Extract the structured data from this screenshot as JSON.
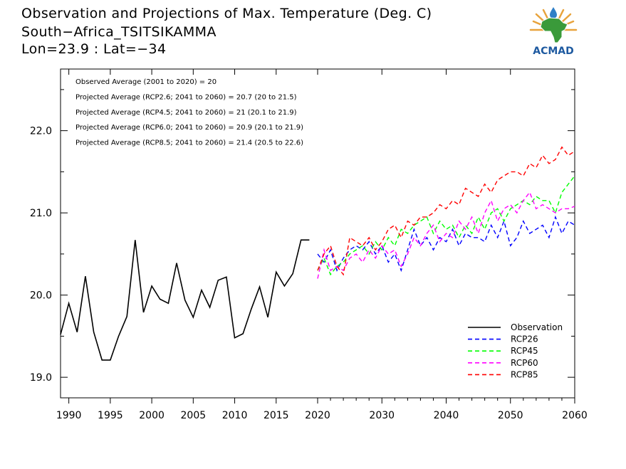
{
  "header": {
    "title_line1": "Observation and Projections of Max. Temperature (Deg. C)",
    "title_line2": "South−Africa_TSITSIKAMMA",
    "title_line3": "Lon=23.9 : Lat=−34"
  },
  "logo": {
    "text": "ACMAD"
  },
  "chart_data": {
    "type": "line",
    "title": "Observation and Projections of Max. Temperature (Deg. C)",
    "xlim": [
      1989,
      2060
    ],
    "ylim": [
      18.75,
      22.75
    ],
    "x_ticks_obs": [
      1990,
      1995,
      2000,
      2005,
      2010,
      2015,
      2020
    ],
    "x_ticks_proj": [
      2030,
      2040,
      2050,
      2060
    ],
    "y_ticks": [
      "19.0",
      "20.0",
      "21.0",
      "22.0"
    ],
    "grid": false,
    "legend_position": "bottom-right",
    "annotations": [
      "Observed Average (2001 to 2020) = 20",
      "Projected Average (RCP2.6; 2041 to 2060) = 20.7 (20 to 21.5)",
      "Projected Average (RCP4.5; 2041 to 2060) = 21 (20.1 to 21.9)",
      "Projected Average (RCP6.0; 2041 to 2060) = 20.9 (20.1 to 21.9)",
      "Projected Average (RCP8.5; 2041 to 2060) = 21.4 (20.5 to 22.6)"
    ],
    "series": [
      {
        "name": "Observation",
        "color": "#000000",
        "dashed": false,
        "x": [
          1989,
          1990,
          1991,
          1992,
          1993,
          1994,
          1995,
          1996,
          1997,
          1998,
          1999,
          2000,
          2001,
          2002,
          2003,
          2004,
          2005,
          2006,
          2007,
          2008,
          2009,
          2010,
          2011,
          2012,
          2013,
          2014,
          2015,
          2016,
          2017,
          2018,
          2019
        ],
        "y": [
          19.52,
          19.9,
          19.55,
          20.23,
          19.55,
          19.21,
          19.21,
          19.5,
          19.74,
          20.67,
          19.79,
          20.11,
          19.95,
          19.9,
          20.39,
          19.94,
          19.73,
          20.06,
          19.85,
          20.18,
          20.22,
          19.48,
          19.53,
          19.83,
          20.1,
          19.73,
          20.28,
          20.11,
          20.26,
          20.67,
          20.67
        ]
      },
      {
        "name": "RCP26",
        "color": "#0000ff",
        "dashed": true,
        "x": [
          2020,
          2021,
          2022,
          2023,
          2024,
          2025,
          2026,
          2027,
          2028,
          2029,
          2030,
          2031,
          2032,
          2033,
          2034,
          2035,
          2036,
          2037,
          2038,
          2039,
          2040,
          2041,
          2042,
          2043,
          2044,
          2045,
          2046,
          2047,
          2048,
          2049,
          2050,
          2051,
          2052,
          2053,
          2054,
          2055,
          2056,
          2057,
          2058,
          2059,
          2060
        ],
        "y": [
          20.5,
          20.4,
          20.55,
          20.3,
          20.45,
          20.55,
          20.6,
          20.55,
          20.65,
          20.5,
          20.6,
          20.4,
          20.5,
          20.3,
          20.55,
          20.8,
          20.6,
          20.7,
          20.55,
          20.7,
          20.65,
          20.8,
          20.6,
          20.75,
          20.7,
          20.7,
          20.65,
          20.85,
          20.7,
          20.9,
          20.6,
          20.7,
          20.9,
          20.75,
          20.8,
          20.85,
          20.7,
          20.95,
          20.75,
          20.9,
          20.85
        ]
      },
      {
        "name": "RCP45",
        "color": "#00ff00",
        "dashed": true,
        "x": [
          2020,
          2021,
          2022,
          2023,
          2024,
          2025,
          2026,
          2027,
          2028,
          2029,
          2030,
          2031,
          2032,
          2033,
          2034,
          2035,
          2036,
          2037,
          2038,
          2039,
          2040,
          2041,
          2042,
          2043,
          2044,
          2045,
          2046,
          2047,
          2048,
          2049,
          2050,
          2051,
          2052,
          2053,
          2054,
          2055,
          2056,
          2057,
          2058,
          2059,
          2060
        ],
        "y": [
          20.3,
          20.45,
          20.25,
          20.35,
          20.4,
          20.5,
          20.55,
          20.6,
          20.5,
          20.65,
          20.55,
          20.7,
          20.6,
          20.8,
          20.75,
          20.85,
          20.9,
          20.95,
          20.75,
          20.9,
          20.8,
          20.85,
          20.7,
          20.85,
          20.75,
          20.95,
          20.8,
          21.0,
          21.05,
          20.9,
          21.05,
          21.1,
          21.15,
          21.1,
          21.2,
          21.15,
          21.15,
          21.0,
          21.25,
          21.35,
          21.45
        ]
      },
      {
        "name": "RCP60",
        "color": "#ff00ff",
        "dashed": true,
        "x": [
          2020,
          2021,
          2022,
          2023,
          2024,
          2025,
          2026,
          2027,
          2028,
          2029,
          2030,
          2031,
          2032,
          2033,
          2034,
          2035,
          2036,
          2037,
          2038,
          2039,
          2040,
          2041,
          2042,
          2043,
          2044,
          2045,
          2046,
          2047,
          2048,
          2049,
          2050,
          2051,
          2052,
          2053,
          2054,
          2055,
          2056,
          2057,
          2058,
          2059,
          2060
        ],
        "y": [
          20.2,
          20.55,
          20.3,
          20.35,
          20.3,
          20.45,
          20.5,
          20.4,
          20.55,
          20.45,
          20.6,
          20.5,
          20.55,
          20.35,
          20.5,
          20.7,
          20.6,
          20.75,
          20.85,
          20.65,
          20.75,
          20.7,
          20.9,
          20.8,
          20.95,
          20.75,
          21.0,
          21.15,
          20.9,
          21.05,
          21.1,
          21.0,
          21.15,
          21.25,
          21.05,
          21.1,
          21.05,
          21.0,
          21.05,
          21.05,
          21.08
        ]
      },
      {
        "name": "RCP85",
        "color": "#ff0000",
        "dashed": true,
        "x": [
          2020,
          2021,
          2022,
          2023,
          2024,
          2025,
          2026,
          2027,
          2028,
          2029,
          2030,
          2031,
          2032,
          2033,
          2034,
          2035,
          2036,
          2037,
          2038,
          2039,
          2040,
          2041,
          2042,
          2043,
          2044,
          2045,
          2046,
          2047,
          2048,
          2049,
          2050,
          2051,
          2052,
          2053,
          2054,
          2055,
          2056,
          2057,
          2058,
          2059,
          2060
        ],
        "y": [
          20.3,
          20.5,
          20.6,
          20.35,
          20.25,
          20.7,
          20.65,
          20.6,
          20.7,
          20.55,
          20.65,
          20.8,
          20.85,
          20.7,
          20.9,
          20.85,
          20.95,
          20.95,
          21.0,
          21.1,
          21.05,
          21.15,
          21.1,
          21.3,
          21.25,
          21.2,
          21.35,
          21.25,
          21.4,
          21.45,
          21.5,
          21.5,
          21.45,
          21.6,
          21.55,
          21.7,
          21.6,
          21.65,
          21.8,
          21.7,
          21.75
        ]
      }
    ]
  }
}
